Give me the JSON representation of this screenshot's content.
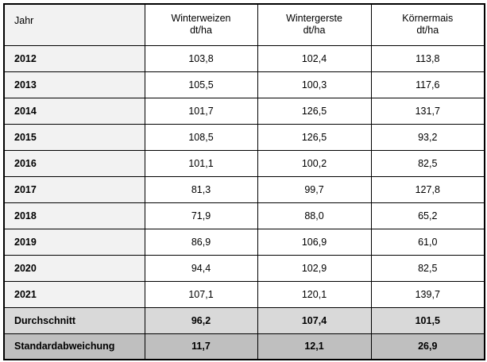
{
  "table": {
    "header": {
      "label_column": "Jahr",
      "columns": [
        {
          "name": "Winterweizen",
          "unit": "dt/ha"
        },
        {
          "name": "Wintergerste",
          "unit": "dt/ha"
        },
        {
          "name": "Körnermais",
          "unit": "dt/ha"
        }
      ]
    },
    "rows": [
      {
        "label": "2012",
        "values": [
          "103,8",
          "102,4",
          "113,8"
        ]
      },
      {
        "label": "2013",
        "values": [
          "105,5",
          "100,3",
          "117,6"
        ]
      },
      {
        "label": "2014",
        "values": [
          "101,7",
          "126,5",
          "131,7"
        ]
      },
      {
        "label": "2015",
        "values": [
          "108,5",
          "126,5",
          "93,2"
        ]
      },
      {
        "label": "2016",
        "values": [
          "101,1",
          "100,2",
          "82,5"
        ]
      },
      {
        "label": "2017",
        "values": [
          "81,3",
          "99,7",
          "127,8"
        ]
      },
      {
        "label": "2018",
        "values": [
          "71,9",
          "88,0",
          "65,2"
        ]
      },
      {
        "label": "2019",
        "values": [
          "86,9",
          "106,9",
          "61,0"
        ]
      },
      {
        "label": "2020",
        "values": [
          "94,4",
          "102,9",
          "82,5"
        ]
      },
      {
        "label": "2021",
        "values": [
          "107,1",
          "120,1",
          "139,7"
        ]
      },
      {
        "label": "Durchschnitt",
        "values": [
          "96,2",
          "107,4",
          "101,5"
        ]
      },
      {
        "label": "Standardabweichung",
        "values": [
          "11,7",
          "12,1",
          "26,9"
        ]
      }
    ],
    "colors": {
      "row_label_background": "#f2f2f2",
      "average_row_background": "#d9d9d9",
      "stddev_row_background": "#bfbfbf",
      "border": "#000000",
      "text": "#000000"
    }
  },
  "chart_data": {
    "type": "table",
    "columns": [
      "Jahr",
      "Winterweizen dt/ha",
      "Wintergerste dt/ha",
      "Körnermais dt/ha"
    ],
    "years": [
      2012,
      2013,
      2014,
      2015,
      2016,
      2017,
      2018,
      2019,
      2020,
      2021
    ],
    "series": [
      {
        "name": "Winterweizen",
        "unit": "dt/ha",
        "values": [
          103.8,
          105.5,
          101.7,
          108.5,
          101.1,
          81.3,
          71.9,
          86.9,
          94.4,
          107.1
        ],
        "durchschnitt": 96.2,
        "standardabweichung": 11.7
      },
      {
        "name": "Wintergerste",
        "unit": "dt/ha",
        "values": [
          102.4,
          100.3,
          126.5,
          126.5,
          100.2,
          99.7,
          88.0,
          106.9,
          102.9,
          120.1
        ],
        "durchschnitt": 107.4,
        "standardabweichung": 12.1
      },
      {
        "name": "Körnermais",
        "unit": "dt/ha",
        "values": [
          113.8,
          117.6,
          131.7,
          93.2,
          82.5,
          127.8,
          65.2,
          61.0,
          82.5,
          139.7
        ],
        "durchschnitt": 101.5,
        "standardabweichung": 26.9
      }
    ]
  }
}
